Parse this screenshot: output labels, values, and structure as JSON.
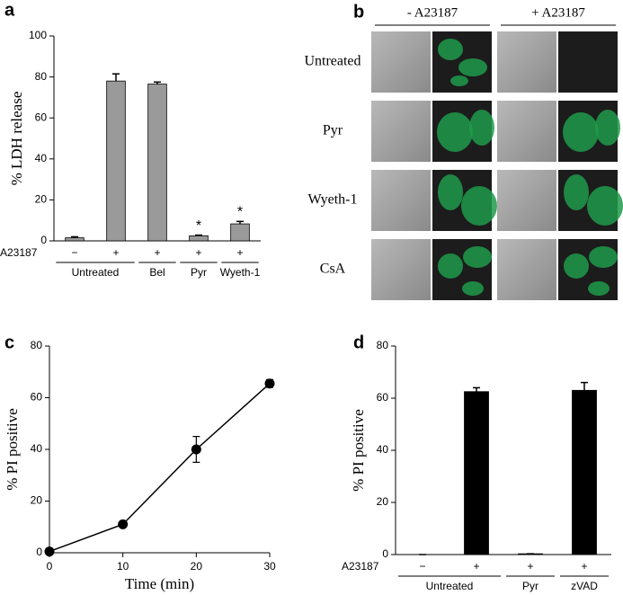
{
  "chart_data": [
    {
      "type": "bar",
      "panel_label": "a",
      "ylabel": "% LDH release",
      "row_label": "A23187",
      "categories": [
        "−",
        "+",
        "+",
        "+",
        "+"
      ],
      "group_labels": [
        "Untreated",
        null,
        "Bel",
        "Pyr",
        "Wyeth-1"
      ],
      "values": [
        1.5,
        78,
        76.5,
        2.5,
        8.3
      ],
      "errors": [
        0.5,
        3.5,
        1,
        0.3,
        1.2
      ],
      "significance": [
        null,
        null,
        null,
        "*",
        "*"
      ],
      "color": "#9a9a9a",
      "ylim": [
        0,
        100
      ],
      "yticks": [
        0,
        20,
        40,
        60,
        80,
        100
      ]
    },
    {
      "type": "line",
      "panel_label": "c",
      "xlabel": "Time (min)",
      "ylabel": "% PI positive",
      "x": [
        0,
        10,
        20,
        30
      ],
      "values": [
        0.5,
        11,
        40,
        65.5
      ],
      "errors": [
        0.5,
        1,
        5,
        1.5
      ],
      "color": "#000000",
      "xlim": [
        0,
        30
      ],
      "xticks": [
        0,
        10,
        20,
        30
      ],
      "ylim": [
        0,
        80
      ],
      "yticks": [
        0,
        20,
        40,
        60,
        80
      ]
    },
    {
      "type": "bar",
      "panel_label": "d",
      "ylabel": "% PI positive",
      "row_label": "A23187",
      "categories": [
        "−",
        "+",
        "+",
        "+"
      ],
      "group_labels": [
        "Untreated",
        null,
        "Pyr",
        "zVAD"
      ],
      "values": [
        0,
        62.5,
        0.3,
        63
      ],
      "errors": [
        0,
        1.5,
        0,
        3
      ],
      "color": "#000000",
      "ylim": [
        0,
        80
      ],
      "yticks": [
        0,
        20,
        40,
        60,
        80
      ]
    }
  ],
  "micrograph_panel": {
    "panel_label": "b",
    "columns": [
      "- A23187",
      "+ A23187"
    ],
    "rows": [
      "Untreated",
      "Pyr",
      "Wyeth-1",
      "CsA"
    ]
  }
}
